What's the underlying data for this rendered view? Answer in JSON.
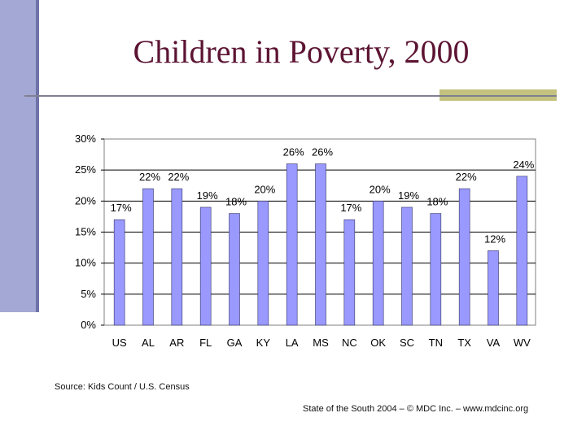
{
  "slide": {
    "title": "Children in Poverty, 2000",
    "source": "Source: Kids Count / U.S. Census",
    "footer": "State of the South 2004 – © MDC Inc. – www.mdcinc.org"
  },
  "colors": {
    "bar_fill": "#9999ff",
    "bar_stroke": "#333366",
    "title": "#5c1433",
    "sidebar": "#a4a8d4",
    "accent": "#c4c27e"
  },
  "chart_data": {
    "type": "bar",
    "categories": [
      "US",
      "AL",
      "AR",
      "FL",
      "GA",
      "KY",
      "LA",
      "MS",
      "NC",
      "OK",
      "SC",
      "TN",
      "TX",
      "VA",
      "WV"
    ],
    "values": [
      17,
      22,
      22,
      19,
      18,
      20,
      26,
      26,
      17,
      20,
      19,
      18,
      22,
      12,
      24
    ],
    "data_labels": [
      "17%",
      "22%",
      "22%",
      "19%",
      "18%",
      "20%",
      "26%",
      "26%",
      "17%",
      "20%",
      "19%",
      "18%",
      "22%",
      "12%",
      "24%"
    ],
    "y_ticks": [
      0,
      5,
      10,
      15,
      20,
      25,
      30
    ],
    "y_tick_labels": [
      "0%",
      "5%",
      "10%",
      "15%",
      "20%",
      "25%",
      "30%"
    ],
    "ylim": [
      0,
      30
    ],
    "title": "",
    "xlabel": "",
    "ylabel": "",
    "grid": true,
    "legend": "none"
  }
}
